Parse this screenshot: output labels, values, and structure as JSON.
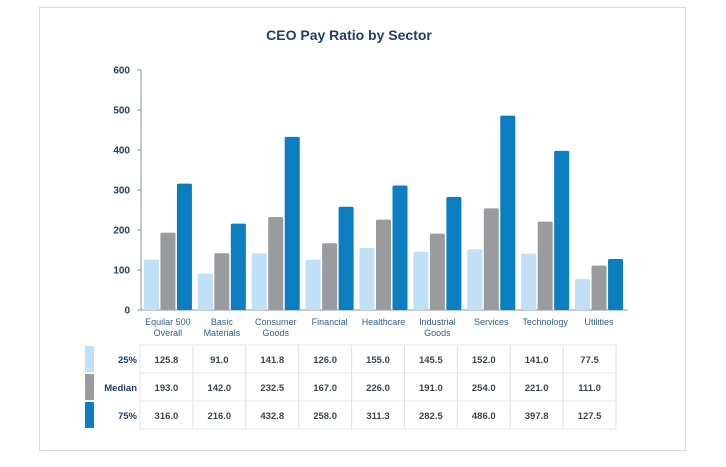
{
  "chart_data": {
    "type": "bar",
    "title": "CEO Pay Ratio by Sector",
    "categories": [
      "Equilar 500 Overall",
      "Basic Materials",
      "Consumer Goods",
      "Financial",
      "Healthcare",
      "Industrial Goods",
      "Services",
      "Technology",
      "Utilities"
    ],
    "category_lines": [
      [
        "Equilar 500",
        "Overall"
      ],
      [
        "Basic",
        "Materials"
      ],
      [
        "Consumer",
        "Goods"
      ],
      [
        "Financial"
      ],
      [
        "Healthcare"
      ],
      [
        "Industrial",
        "Goods"
      ],
      [
        "Services"
      ],
      [
        "Technology"
      ],
      [
        "Utilities"
      ]
    ],
    "series": [
      {
        "name": "25%",
        "color": "#bfe0f6",
        "values": [
          125.8,
          91.0,
          141.8,
          126.0,
          155.0,
          145.5,
          152.0,
          141.0,
          77.5
        ],
        "labels": [
          "125.8",
          "91.0",
          "141.8",
          "126.0",
          "155.0",
          "145.5",
          "152.0",
          "141.0",
          "77.5"
        ]
      },
      {
        "name": "Median",
        "color": "#999b9e",
        "values": [
          193.0,
          142.0,
          232.5,
          167.0,
          226.0,
          191.0,
          254.0,
          221.0,
          111.0
        ],
        "labels": [
          "193.0",
          "142.0",
          "232.5",
          "167.0",
          "226.0",
          "191.0",
          "254.0",
          "221.0",
          "111.0"
        ]
      },
      {
        "name": "75%",
        "color": "#0b7ec1",
        "values": [
          316.0,
          216.0,
          432.8,
          258.0,
          311.3,
          282.5,
          486.0,
          397.8,
          127.5
        ],
        "labels": [
          "316.0",
          "216.0",
          "432.8",
          "258.0",
          "311.3",
          "282.5",
          "486.0",
          "397.8",
          "127.5"
        ]
      }
    ],
    "ylim": [
      0,
      600
    ],
    "yticks": [
      0,
      100,
      200,
      300,
      400,
      500,
      600
    ],
    "grid": false,
    "legend": "table-left"
  }
}
